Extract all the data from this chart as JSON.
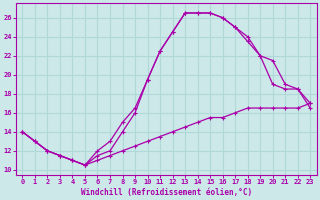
{
  "xlabel": "Windchill (Refroidissement éolien,°C)",
  "xlim": [
    -0.5,
    23.5
  ],
  "ylim": [
    9.5,
    27.5
  ],
  "xticks": [
    0,
    1,
    2,
    3,
    4,
    5,
    6,
    7,
    8,
    9,
    10,
    11,
    12,
    13,
    14,
    15,
    16,
    17,
    18,
    19,
    20,
    21,
    22,
    23
  ],
  "yticks": [
    10,
    12,
    14,
    16,
    18,
    20,
    22,
    24,
    26
  ],
  "bg_color": "#cce8e8",
  "grid_color": "#b0d8d8",
  "line_color": "#aa00aa",
  "line1_x": [
    0,
    1,
    2,
    3,
    4,
    5,
    6,
    7,
    8,
    9,
    10,
    11,
    12,
    13,
    14,
    15,
    16,
    17,
    18,
    19,
    20,
    21,
    22,
    23
  ],
  "line1_y": [
    14,
    13,
    12,
    11.5,
    11,
    10.5,
    11,
    11.5,
    12,
    12.5,
    13,
    13.5,
    14,
    14.5,
    15,
    15.5,
    15.5,
    16,
    16.5,
    16.5,
    16.5,
    16.5,
    16.5,
    17
  ],
  "line2_x": [
    0,
    1,
    2,
    3,
    4,
    5,
    6,
    7,
    8,
    9,
    10,
    11,
    12,
    13,
    14,
    15,
    16,
    17,
    18,
    19,
    20,
    21,
    22,
    23
  ],
  "line2_y": [
    14,
    13,
    12,
    11.5,
    11,
    10.5,
    12,
    13,
    15,
    16.5,
    19.5,
    22.5,
    24.5,
    26.5,
    26.5,
    26.5,
    26,
    25,
    24,
    22,
    21.5,
    19,
    18.5,
    16.5
  ],
  "line3_x": [
    0,
    1,
    2,
    3,
    4,
    5,
    6,
    7,
    8,
    9,
    10,
    11,
    12,
    13,
    14,
    15,
    16,
    17,
    18,
    19,
    20,
    21,
    22,
    23
  ],
  "line3_y": [
    14,
    13,
    12,
    11.5,
    11,
    10.5,
    11.5,
    12,
    14,
    16,
    19.5,
    22.5,
    24.5,
    26.5,
    26.5,
    26.5,
    26,
    25,
    23.5,
    22,
    19,
    18.5,
    18.5,
    17
  ]
}
